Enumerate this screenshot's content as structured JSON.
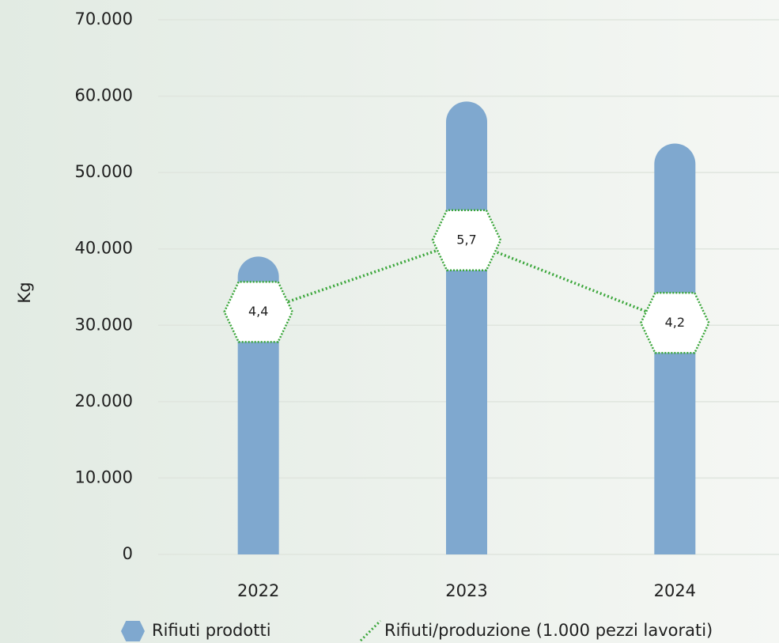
{
  "chart_data": {
    "type": "bar_line",
    "categories": [
      "2022",
      "2023",
      "2024"
    ],
    "ylabel": "Kg",
    "ylim": [
      0,
      70000
    ],
    "yticks": [
      0,
      {
        "value": 10000,
        "label": "10.000"
      },
      {
        "value": 20000,
        "label": "20.000"
      },
      {
        "value": 30000,
        "label": "30.000"
      },
      {
        "value": 40000,
        "label": "40.000"
      },
      {
        "value": 50000,
        "label": "50.000"
      },
      {
        "value": 60000,
        "label": "60.000"
      },
      {
        "value": 70000,
        "label": "70.000"
      }
    ],
    "y2lim": [
      0,
      9.7
    ],
    "grid": true,
    "legend": "bottom",
    "series": [
      {
        "name": "Rifiuti prodotti",
        "type": "bar",
        "color": "#7fa8cf",
        "values": [
          39000,
          59300,
          53800
        ]
      },
      {
        "name": "Rifiuti/produzione (1.000 pezzi lavorati)",
        "type": "line",
        "axis": "y2",
        "color": "#3aa63a",
        "values": [
          4.4,
          5.7,
          4.2
        ],
        "value_labels": [
          "4,4",
          "5,7",
          "4,2"
        ]
      }
    ]
  }
}
